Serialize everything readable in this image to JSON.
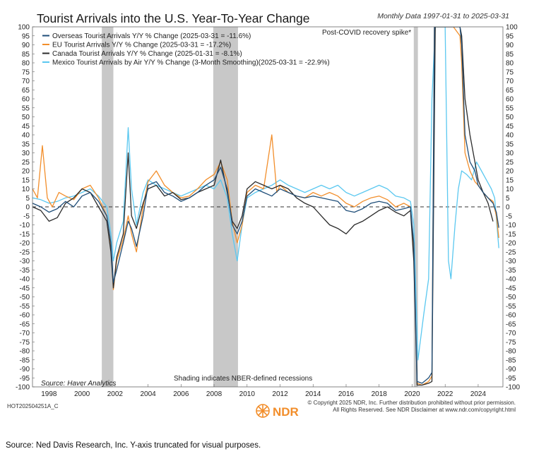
{
  "chart_data": {
    "type": "line",
    "title": "Tourist Arrivals into the U.S. Year-To-Year Change",
    "subtitle": "Monthly Data 1997-01-31 to 2025-03-31",
    "ylim": [
      -100,
      100
    ],
    "xlim": [
      1997.0,
      2025.5
    ],
    "ytick_step": 5,
    "xticks": [
      "1998",
      "2000",
      "2002",
      "2004",
      "2006",
      "2008",
      "2010",
      "2012",
      "2014",
      "2016",
      "2018",
      "2020",
      "2022",
      "2024"
    ],
    "recessions": [
      [
        2001.2,
        2001.9
      ],
      [
        2007.95,
        2009.45
      ],
      [
        2020.1,
        2020.35
      ]
    ],
    "zero_line": "dashed",
    "legend_position": "top-left",
    "annotations": {
      "covid": "Post-COVID recovery spike*",
      "shading": "Shading indicates NBER-defined recessions",
      "source": "Source:  Haver Analytics"
    },
    "series": [
      {
        "name": "Overseas Tourist Arrivals Y/Y % Change (2025-03-31 = -11.6%)",
        "color": "#1f4e79",
        "points": [
          [
            1997.0,
            2
          ],
          [
            1997.5,
            0
          ],
          [
            1998.0,
            -3
          ],
          [
            1998.5,
            -1
          ],
          [
            1999.0,
            3
          ],
          [
            1999.5,
            0
          ],
          [
            2000.0,
            6
          ],
          [
            2000.5,
            8
          ],
          [
            2001.0,
            3
          ],
          [
            2001.5,
            -5
          ],
          [
            2001.75,
            -20
          ],
          [
            2001.9,
            -42
          ],
          [
            2002.1,
            -35
          ],
          [
            2002.5,
            -20
          ],
          [
            2002.8,
            -8
          ],
          [
            2003.0,
            -12
          ],
          [
            2003.3,
            -22
          ],
          [
            2003.7,
            -5
          ],
          [
            2004.0,
            12
          ],
          [
            2004.5,
            14
          ],
          [
            2005.0,
            8
          ],
          [
            2005.5,
            6
          ],
          [
            2006.0,
            3
          ],
          [
            2006.5,
            5
          ],
          [
            2007.0,
            8
          ],
          [
            2007.5,
            12
          ],
          [
            2008.0,
            15
          ],
          [
            2008.4,
            22
          ],
          [
            2008.8,
            10
          ],
          [
            2009.1,
            -10
          ],
          [
            2009.4,
            -15
          ],
          [
            2009.7,
            -8
          ],
          [
            2010.0,
            6
          ],
          [
            2010.5,
            10
          ],
          [
            2011.0,
            8
          ],
          [
            2011.5,
            6
          ],
          [
            2012.0,
            10
          ],
          [
            2012.5,
            8
          ],
          [
            2013.0,
            6
          ],
          [
            2013.5,
            5
          ],
          [
            2014.0,
            6
          ],
          [
            2014.5,
            5
          ],
          [
            2015.0,
            4
          ],
          [
            2015.5,
            3
          ],
          [
            2016.0,
            -2
          ],
          [
            2016.5,
            -3
          ],
          [
            2017.0,
            -1
          ],
          [
            2017.5,
            2
          ],
          [
            2018.0,
            3
          ],
          [
            2018.5,
            2
          ],
          [
            2019.0,
            -2
          ],
          [
            2019.5,
            -1
          ],
          [
            2019.9,
            0
          ],
          [
            2020.1,
            -20
          ],
          [
            2020.3,
            -97
          ],
          [
            2020.6,
            -98
          ],
          [
            2021.0,
            -95
          ],
          [
            2021.2,
            -92
          ],
          [
            2021.35,
            100
          ],
          [
            2022.5,
            100
          ],
          [
            2022.9,
            100
          ],
          [
            2023.0,
            90
          ],
          [
            2023.2,
            40
          ],
          [
            2023.5,
            25
          ],
          [
            2023.8,
            20
          ],
          [
            2024.0,
            12
          ],
          [
            2024.3,
            8
          ],
          [
            2024.6,
            5
          ],
          [
            2024.9,
            2
          ],
          [
            2025.1,
            -3
          ],
          [
            2025.25,
            -11.6
          ]
        ]
      },
      {
        "name": "EU Tourist Arrivals Y/Y % Change (2025-03-31 = -17.2%)",
        "color": "#f28e2b",
        "points": [
          [
            1997.0,
            10
          ],
          [
            1997.3,
            5
          ],
          [
            1997.6,
            34
          ],
          [
            1997.9,
            5
          ],
          [
            1998.2,
            0
          ],
          [
            1998.6,
            8
          ],
          [
            1999.0,
            6
          ],
          [
            1999.5,
            4
          ],
          [
            2000.0,
            10
          ],
          [
            2000.5,
            12
          ],
          [
            2001.0,
            5
          ],
          [
            2001.5,
            -5
          ],
          [
            2001.75,
            -22
          ],
          [
            2001.9,
            -46
          ],
          [
            2002.1,
            -30
          ],
          [
            2002.5,
            -18
          ],
          [
            2002.8,
            -5
          ],
          [
            2003.0,
            -15
          ],
          [
            2003.3,
            -25
          ],
          [
            2003.7,
            0
          ],
          [
            2004.0,
            14
          ],
          [
            2004.5,
            20
          ],
          [
            2005.0,
            12
          ],
          [
            2005.5,
            8
          ],
          [
            2006.0,
            5
          ],
          [
            2006.5,
            6
          ],
          [
            2007.0,
            10
          ],
          [
            2007.5,
            15
          ],
          [
            2008.0,
            18
          ],
          [
            2008.4,
            25
          ],
          [
            2008.8,
            15
          ],
          [
            2009.1,
            -8
          ],
          [
            2009.4,
            -20
          ],
          [
            2009.7,
            -10
          ],
          [
            2010.0,
            8
          ],
          [
            2010.5,
            12
          ],
          [
            2011.0,
            10
          ],
          [
            2011.5,
            40
          ],
          [
            2011.8,
            8
          ],
          [
            2012.0,
            12
          ],
          [
            2012.5,
            8
          ],
          [
            2013.0,
            6
          ],
          [
            2013.5,
            5
          ],
          [
            2014.0,
            8
          ],
          [
            2014.5,
            6
          ],
          [
            2015.0,
            8
          ],
          [
            2015.5,
            6
          ],
          [
            2016.0,
            2
          ],
          [
            2016.5,
            0
          ],
          [
            2017.0,
            3
          ],
          [
            2017.5,
            5
          ],
          [
            2018.0,
            6
          ],
          [
            2018.5,
            4
          ],
          [
            2019.0,
            0
          ],
          [
            2019.5,
            2
          ],
          [
            2019.9,
            0
          ],
          [
            2020.1,
            -25
          ],
          [
            2020.3,
            -98
          ],
          [
            2020.6,
            -99
          ],
          [
            2021.0,
            -97
          ],
          [
            2021.2,
            -94
          ],
          [
            2021.35,
            100
          ],
          [
            2022.5,
            100
          ],
          [
            2022.9,
            95
          ],
          [
            2023.0,
            80
          ],
          [
            2023.2,
            30
          ],
          [
            2023.5,
            20
          ],
          [
            2023.8,
            14
          ],
          [
            2024.0,
            12
          ],
          [
            2024.3,
            8
          ],
          [
            2024.6,
            5
          ],
          [
            2024.9,
            3
          ],
          [
            2025.1,
            -5
          ],
          [
            2025.25,
            -17.2
          ]
        ]
      },
      {
        "name": "Canada Tourist Arrivals Y/Y % Change (2025-01-31 = -8.1%)",
        "color": "#2b2b2b",
        "points": [
          [
            1997.0,
            0
          ],
          [
            1997.5,
            -2
          ],
          [
            1998.0,
            -8
          ],
          [
            1998.5,
            -6
          ],
          [
            1999.0,
            2
          ],
          [
            1999.5,
            5
          ],
          [
            2000.0,
            10
          ],
          [
            2000.5,
            8
          ],
          [
            2001.0,
            0
          ],
          [
            2001.5,
            -8
          ],
          [
            2001.75,
            -25
          ],
          [
            2001.9,
            -45
          ],
          [
            2002.1,
            -28
          ],
          [
            2002.5,
            -15
          ],
          [
            2002.8,
            30
          ],
          [
            2003.0,
            -5
          ],
          [
            2003.3,
            -12
          ],
          [
            2003.7,
            2
          ],
          [
            2004.0,
            10
          ],
          [
            2004.5,
            12
          ],
          [
            2005.0,
            6
          ],
          [
            2005.5,
            8
          ],
          [
            2006.0,
            4
          ],
          [
            2006.5,
            5
          ],
          [
            2007.0,
            8
          ],
          [
            2007.5,
            10
          ],
          [
            2008.0,
            12
          ],
          [
            2008.4,
            26
          ],
          [
            2008.8,
            8
          ],
          [
            2009.1,
            -8
          ],
          [
            2009.4,
            -12
          ],
          [
            2009.7,
            -5
          ],
          [
            2010.0,
            10
          ],
          [
            2010.5,
            14
          ],
          [
            2011.0,
            12
          ],
          [
            2011.5,
            10
          ],
          [
            2012.0,
            12
          ],
          [
            2012.5,
            10
          ],
          [
            2013.0,
            5
          ],
          [
            2013.5,
            2
          ],
          [
            2014.0,
            0
          ],
          [
            2014.5,
            -5
          ],
          [
            2015.0,
            -10
          ],
          [
            2015.5,
            -12
          ],
          [
            2016.0,
            -15
          ],
          [
            2016.5,
            -10
          ],
          [
            2017.0,
            -8
          ],
          [
            2017.5,
            -5
          ],
          [
            2018.0,
            -2
          ],
          [
            2018.5,
            0
          ],
          [
            2019.0,
            -3
          ],
          [
            2019.5,
            -5
          ],
          [
            2019.9,
            -2
          ],
          [
            2020.1,
            -30
          ],
          [
            2020.3,
            -99
          ],
          [
            2020.6,
            -99
          ],
          [
            2021.0,
            -98
          ],
          [
            2021.2,
            -97
          ],
          [
            2021.4,
            100
          ],
          [
            2022.5,
            100
          ],
          [
            2022.9,
            100
          ],
          [
            2023.0,
            95
          ],
          [
            2023.2,
            60
          ],
          [
            2023.5,
            40
          ],
          [
            2023.8,
            25
          ],
          [
            2024.0,
            15
          ],
          [
            2024.3,
            8
          ],
          [
            2024.6,
            2
          ],
          [
            2024.9,
            -8.1
          ]
        ]
      },
      {
        "name": "Mexico Tourist Arrivals by Air Y/Y % Change (3-Month Smoothing)(2025-03-31 = -22.9%)",
        "color": "#5bc8f0",
        "points": [
          [
            1997.0,
            5
          ],
          [
            1997.5,
            4
          ],
          [
            1998.0,
            2
          ],
          [
            1998.5,
            3
          ],
          [
            1999.0,
            5
          ],
          [
            1999.5,
            6
          ],
          [
            2000.0,
            8
          ],
          [
            2000.5,
            10
          ],
          [
            2001.0,
            6
          ],
          [
            2001.5,
            0
          ],
          [
            2001.75,
            -15
          ],
          [
            2001.9,
            -30
          ],
          [
            2002.1,
            -20
          ],
          [
            2002.5,
            -8
          ],
          [
            2002.8,
            44
          ],
          [
            2003.0,
            10
          ],
          [
            2003.3,
            -10
          ],
          [
            2003.7,
            8
          ],
          [
            2004.0,
            15
          ],
          [
            2004.5,
            12
          ],
          [
            2005.0,
            10
          ],
          [
            2005.5,
            8
          ],
          [
            2006.0,
            6
          ],
          [
            2006.5,
            8
          ],
          [
            2007.0,
            10
          ],
          [
            2007.5,
            12
          ],
          [
            2008.0,
            10
          ],
          [
            2008.4,
            15
          ],
          [
            2008.8,
            5
          ],
          [
            2009.1,
            -15
          ],
          [
            2009.4,
            -30
          ],
          [
            2009.7,
            -10
          ],
          [
            2010.0,
            5
          ],
          [
            2010.5,
            8
          ],
          [
            2011.0,
            10
          ],
          [
            2011.5,
            12
          ],
          [
            2012.0,
            15
          ],
          [
            2012.5,
            12
          ],
          [
            2013.0,
            10
          ],
          [
            2013.5,
            8
          ],
          [
            2014.0,
            10
          ],
          [
            2014.5,
            12
          ],
          [
            2015.0,
            10
          ],
          [
            2015.5,
            12
          ],
          [
            2016.0,
            8
          ],
          [
            2016.5,
            6
          ],
          [
            2017.0,
            8
          ],
          [
            2017.5,
            10
          ],
          [
            2018.0,
            12
          ],
          [
            2018.5,
            10
          ],
          [
            2019.0,
            6
          ],
          [
            2019.5,
            5
          ],
          [
            2019.9,
            3
          ],
          [
            2020.1,
            -10
          ],
          [
            2020.35,
            -85
          ],
          [
            2020.7,
            -60
          ],
          [
            2021.0,
            -40
          ],
          [
            2021.2,
            60
          ],
          [
            2021.4,
            100
          ],
          [
            2022.0,
            100
          ],
          [
            2022.2,
            -30
          ],
          [
            2022.35,
            -40
          ],
          [
            2022.6,
            -10
          ],
          [
            2022.8,
            10
          ],
          [
            2023.0,
            20
          ],
          [
            2023.3,
            18
          ],
          [
            2023.6,
            15
          ],
          [
            2023.9,
            25
          ],
          [
            2024.2,
            20
          ],
          [
            2024.5,
            15
          ],
          [
            2024.8,
            10
          ],
          [
            2025.0,
            5
          ],
          [
            2025.25,
            -22.9
          ]
        ]
      }
    ]
  },
  "footer": {
    "code": "HOT202504251A_C",
    "copyright": "© Copyright 2025 NDR, Inc. Further distribution prohibited without prior permission.",
    "rights": "All Rights Reserved. See NDR Disclaimer at www.ndr.com/copyright.html",
    "logo_text": "NDR"
  },
  "caption": "Source: Ned Davis Research, Inc. Y-axis truncated for visual purposes."
}
